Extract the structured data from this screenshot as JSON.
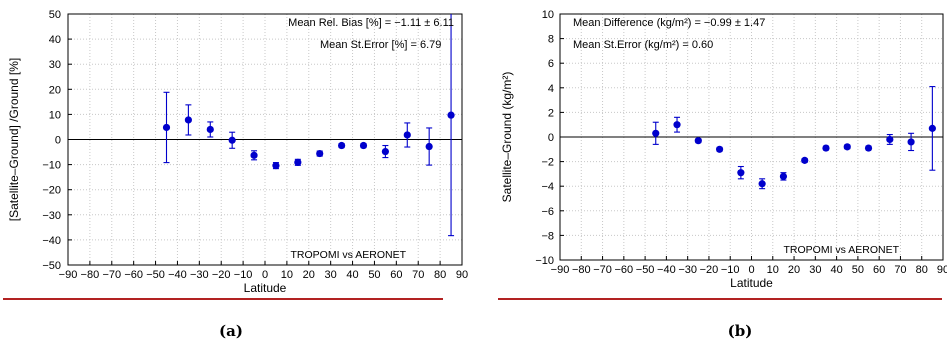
{
  "figure": {
    "rule_color": "#b22222",
    "panel_labels": [
      "(a)",
      "(b)"
    ]
  },
  "chart_data": [
    {
      "type": "scatter",
      "ylabel": "[Satellite–Ground] /Ground  [%]",
      "xlabel": "Latitude",
      "xlim": [
        -90,
        90
      ],
      "ylim": [
        -50,
        50
      ],
      "x_ticks": [
        -90,
        -80,
        -70,
        -60,
        -50,
        -40,
        -30,
        -20,
        -10,
        0,
        10,
        20,
        30,
        40,
        50,
        60,
        70,
        80,
        90
      ],
      "y_ticks": [
        -50,
        -40,
        -30,
        -20,
        -10,
        0,
        10,
        20,
        30,
        40,
        50
      ],
      "grid": true,
      "zero_line": true,
      "marker_color": "#0000cc",
      "annotations": [
        "Mean Rel. Bias [%] = −1.11 ± 6.11",
        "Mean St.Error [%] = 6.79",
        "TROPOMI vs AERONET"
      ],
      "points": [
        {
          "x": -45,
          "y": 4.8,
          "err": 14.0
        },
        {
          "x": -35,
          "y": 7.8,
          "err": 6.0
        },
        {
          "x": -25,
          "y": 4.0,
          "err": 3.0
        },
        {
          "x": -15,
          "y": -0.3,
          "err": 3.2
        },
        {
          "x": -5,
          "y": -6.3,
          "err": 1.8
        },
        {
          "x": 5,
          "y": -10.4,
          "err": 1.2
        },
        {
          "x": 15,
          "y": -9.1,
          "err": 1.2
        },
        {
          "x": 25,
          "y": -5.6,
          "err": 1.0
        },
        {
          "x": 35,
          "y": -2.4,
          "err": 0.8
        },
        {
          "x": 45,
          "y": -2.4,
          "err": 0.8
        },
        {
          "x": 55,
          "y": -4.8,
          "err": 2.4
        },
        {
          "x": 65,
          "y": 1.8,
          "err": 4.8
        },
        {
          "x": 75,
          "y": -2.8,
          "err": 7.4
        },
        {
          "x": 85,
          "y": 9.7,
          "err": 48.0
        }
      ]
    },
    {
      "type": "scatter",
      "ylabel": "Satellite–Ground (kg/m²)",
      "xlabel": "Latitude",
      "xlim": [
        -90,
        90
      ],
      "ylim": [
        -10,
        10
      ],
      "x_ticks": [
        -90,
        -80,
        -70,
        -60,
        -50,
        -40,
        -30,
        -20,
        -10,
        0,
        10,
        20,
        30,
        40,
        50,
        60,
        70,
        80,
        90
      ],
      "y_ticks": [
        -10,
        -8,
        -6,
        -4,
        -2,
        0,
        2,
        4,
        6,
        8,
        10
      ],
      "grid": true,
      "zero_line": true,
      "marker_color": "#0000cc",
      "annotations": [
        "Mean Difference (kg/m²) = −0.99 ± 1.47",
        "Mean St.Error (kg/m²) = 0.60",
        "TROPOMI vs AERONET"
      ],
      "points": [
        {
          "x": -45,
          "y": 0.3,
          "err": 0.9
        },
        {
          "x": -35,
          "y": 1.0,
          "err": 0.6
        },
        {
          "x": -25,
          "y": -0.3,
          "err": 0.15
        },
        {
          "x": -15,
          "y": -1.0,
          "err": 0.15
        },
        {
          "x": -5,
          "y": -2.9,
          "err": 0.5
        },
        {
          "x": 5,
          "y": -3.8,
          "err": 0.4
        },
        {
          "x": 15,
          "y": -3.2,
          "err": 0.3
        },
        {
          "x": 25,
          "y": -1.9,
          "err": 0.15
        },
        {
          "x": 35,
          "y": -0.9,
          "err": 0.15
        },
        {
          "x": 45,
          "y": -0.8,
          "err": 0.15
        },
        {
          "x": 55,
          "y": -0.9,
          "err": 0.15
        },
        {
          "x": 65,
          "y": -0.2,
          "err": 0.4
        },
        {
          "x": 75,
          "y": -0.4,
          "err": 0.7
        },
        {
          "x": 85,
          "y": 0.7,
          "err": 3.4
        }
      ]
    }
  ]
}
